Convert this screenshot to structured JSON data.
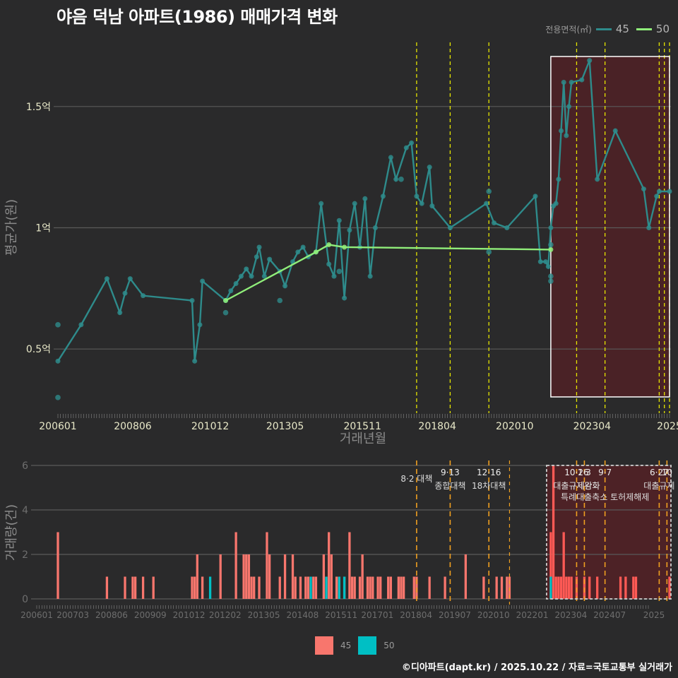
{
  "title": "야음 덕남 아파트(1986) 매매가격 변화",
  "legend_top": {
    "title": "전용면적(㎡)",
    "items": [
      {
        "label": "45",
        "color": "#2e8b8b"
      },
      {
        "label": "50",
        "color": "#90ee7a"
      }
    ]
  },
  "legend_bottom": {
    "items": [
      {
        "label": "45",
        "color": "#f8766d"
      },
      {
        "label": "50",
        "color": "#00bfc4"
      }
    ]
  },
  "footer": "©디아파트(dapt.kr) / 2025.10.22 / 자료=국토교통부 실거래가",
  "colors": {
    "bg": "#2a2a2b",
    "grid": "#5a5a5a",
    "line45": "#2e8b8b",
    "line50": "#90ee7a",
    "bar45": "#f8766d",
    "bar50": "#00bfc4",
    "policy": "#e6e600",
    "policy_bottom": "#f0a020",
    "highlight_fill": "#4a2226"
  },
  "chart_data": [
    {
      "type": "line",
      "title": "야음 덕남 아파트(1986) 매매가격 변화",
      "xlabel": "거래년월",
      "ylabel": "평균가(원)",
      "x_tick_labels": [
        "200601",
        "200806",
        "201012",
        "201305",
        "201511",
        "201804",
        "202010",
        "202304",
        "2025"
      ],
      "y_tick_labels": [
        "0.5억",
        "1억",
        "1.5억"
      ],
      "ylim": [
        0.25,
        1.75
      ],
      "y_unit": "억원",
      "grid": true,
      "legend_position": "top-right",
      "series": [
        {
          "name": "45",
          "points": [
            [
              "2006-01",
              0.45
            ],
            [
              "2006-10",
              0.6
            ],
            [
              "2007-08",
              0.79
            ],
            [
              "2008-01",
              0.65
            ],
            [
              "2008-03",
              0.73
            ],
            [
              "2008-05",
              0.79
            ],
            [
              "2008-10",
              0.72
            ],
            [
              "2010-05",
              0.7
            ],
            [
              "2010-06",
              0.45
            ],
            [
              "2010-08",
              0.6
            ],
            [
              "2010-09",
              0.78
            ],
            [
              "2011-06",
              0.7
            ],
            [
              "2011-08",
              0.74
            ],
            [
              "2011-10",
              0.77
            ],
            [
              "2011-12",
              0.8
            ],
            [
              "2012-02",
              0.83
            ],
            [
              "2012-04",
              0.8
            ],
            [
              "2012-06",
              0.88
            ],
            [
              "2012-07",
              0.92
            ],
            [
              "2012-09",
              0.8
            ],
            [
              "2012-11",
              0.87
            ],
            [
              "2013-03",
              0.82
            ],
            [
              "2013-05",
              0.76
            ],
            [
              "2013-08",
              0.86
            ],
            [
              "2013-10",
              0.9
            ],
            [
              "2013-12",
              0.92
            ],
            [
              "2014-02",
              0.88
            ],
            [
              "2014-05",
              0.9
            ],
            [
              "2014-07",
              1.1
            ],
            [
              "2014-10",
              0.85
            ],
            [
              "2014-12",
              0.8
            ],
            [
              "2015-02",
              1.03
            ],
            [
              "2015-04",
              0.71
            ],
            [
              "2015-06",
              0.99
            ],
            [
              "2015-08",
              1.1
            ],
            [
              "2015-10",
              0.92
            ],
            [
              "2015-12",
              1.12
            ],
            [
              "2016-02",
              0.8
            ],
            [
              "2016-04",
              1.0
            ],
            [
              "2016-07",
              1.13
            ],
            [
              "2016-10",
              1.29
            ],
            [
              "2016-12",
              1.2
            ],
            [
              "2017-04",
              1.33
            ],
            [
              "2017-06",
              1.35
            ],
            [
              "2017-08",
              1.13
            ],
            [
              "2017-10",
              1.1
            ],
            [
              "2018-01",
              1.25
            ],
            [
              "2018-02",
              1.09
            ],
            [
              "2018-09",
              1.0
            ],
            [
              "2019-11",
              1.1
            ],
            [
              "2020-02",
              1.02
            ],
            [
              "2020-07",
              1.0
            ],
            [
              "2021-06",
              1.13
            ],
            [
              "2021-08",
              0.86
            ],
            [
              "2021-10",
              0.86
            ],
            [
              "2021-11",
              0.84
            ],
            [
              "2021-12",
              1.0
            ],
            [
              "2022-01",
              1.09
            ],
            [
              "2022-02",
              1.1
            ],
            [
              "2022-03",
              1.2
            ],
            [
              "2022-04",
              1.4
            ],
            [
              "2022-05",
              1.6
            ],
            [
              "2022-06",
              1.38
            ],
            [
              "2022-07",
              1.5
            ],
            [
              "2022-08",
              1.6
            ],
            [
              "2022-12",
              1.61
            ],
            [
              "2023-03",
              1.69
            ],
            [
              "2023-06",
              1.2
            ],
            [
              "2024-01",
              1.4
            ],
            [
              "2024-12",
              1.16
            ],
            [
              "2025-02",
              1.0
            ],
            [
              "2025-05",
              1.13
            ],
            [
              "2025-06",
              1.15
            ],
            [
              "2025-10",
              1.15
            ]
          ]
        },
        {
          "name": "50",
          "points": [
            [
              "2011-06",
              0.7
            ],
            [
              "2014-05",
              0.9
            ],
            [
              "2014-10",
              0.93
            ],
            [
              "2015-04",
              0.92
            ],
            [
              "2021-12",
              0.91
            ]
          ]
        }
      ],
      "scatter_only_45": [
        [
          "2006-01",
          0.6
        ],
        [
          "2006-01",
          0.3
        ],
        [
          "2011-06",
          0.65
        ],
        [
          "2013-03",
          0.7
        ],
        [
          "2015-02",
          0.82
        ],
        [
          "2017-02",
          1.2
        ],
        [
          "2019-12",
          0.9
        ],
        [
          "2019-12",
          1.15
        ],
        [
          "2021-12",
          0.93
        ],
        [
          "2021-12",
          0.8
        ],
        [
          "2021-12",
          0.78
        ]
      ],
      "highlight_region": {
        "from": "2021-12",
        "to": "2025-10"
      },
      "policy_lines": [
        "2017-08",
        "2018-09",
        "2019-12",
        "2022-10",
        "2023-09",
        "2025-06",
        "2025-08",
        "2025-10"
      ]
    },
    {
      "type": "bar",
      "xlabel": "",
      "ylabel": "거래량(건)",
      "x_tick_labels": [
        "200601",
        "200703",
        "200806",
        "200909",
        "201012",
        "201202",
        "201305",
        "201408",
        "201511",
        "201701",
        "201804",
        "201907",
        "202010",
        "202201",
        "202304",
        "202407",
        "2025"
      ],
      "y_tick_labels": [
        "0",
        "2",
        "4",
        "6"
      ],
      "ylim": [
        0,
        6
      ],
      "series_names": [
        "45",
        "50"
      ],
      "bars_45": [
        [
          "2006-01",
          3
        ],
        [
          "2007-08",
          1
        ],
        [
          "2008-03",
          1
        ],
        [
          "2008-06",
          1
        ],
        [
          "2008-07",
          1
        ],
        [
          "2008-10",
          1
        ],
        [
          "2009-02",
          1
        ],
        [
          "2010-05",
          1
        ],
        [
          "2010-06",
          1
        ],
        [
          "2010-07",
          2
        ],
        [
          "2010-09",
          1
        ],
        [
          "2011-04",
          2
        ],
        [
          "2011-10",
          3
        ],
        [
          "2012-01",
          2
        ],
        [
          "2012-02",
          2
        ],
        [
          "2012-03",
          2
        ],
        [
          "2012-04",
          1
        ],
        [
          "2012-05",
          1
        ],
        [
          "2012-07",
          1
        ],
        [
          "2012-10",
          3
        ],
        [
          "2012-11",
          2
        ],
        [
          "2013-03",
          1
        ],
        [
          "2013-05",
          2
        ],
        [
          "2013-08",
          2
        ],
        [
          "2013-09",
          1
        ],
        [
          "2013-11",
          1
        ],
        [
          "2014-01",
          1
        ],
        [
          "2014-02",
          1
        ],
        [
          "2014-04",
          1
        ],
        [
          "2014-05",
          1
        ],
        [
          "2014-08",
          2
        ],
        [
          "2014-09",
          1
        ],
        [
          "2014-10",
          3
        ],
        [
          "2014-11",
          2
        ],
        [
          "2015-01",
          1
        ],
        [
          "2015-02",
          1
        ],
        [
          "2015-04",
          1
        ],
        [
          "2015-06",
          3
        ],
        [
          "2015-07",
          1
        ],
        [
          "2015-08",
          1
        ],
        [
          "2015-10",
          1
        ],
        [
          "2015-11",
          2
        ],
        [
          "2016-01",
          1
        ],
        [
          "2016-02",
          1
        ],
        [
          "2016-03",
          1
        ],
        [
          "2016-05",
          1
        ],
        [
          "2016-06",
          1
        ],
        [
          "2016-09",
          1
        ],
        [
          "2016-10",
          1
        ],
        [
          "2017-01",
          1
        ],
        [
          "2017-02",
          1
        ],
        [
          "2017-03",
          1
        ],
        [
          "2017-07",
          1
        ],
        [
          "2017-08",
          1
        ],
        [
          "2018-01",
          1
        ],
        [
          "2018-07",
          1
        ],
        [
          "2019-03",
          2
        ],
        [
          "2019-10",
          1
        ],
        [
          "2020-03",
          1
        ],
        [
          "2020-05",
          1
        ],
        [
          "2020-07",
          1
        ],
        [
          "2020-08",
          1
        ],
        [
          "2021-12",
          3
        ],
        [
          "2022-01",
          6
        ],
        [
          "2022-02",
          1
        ],
        [
          "2022-03",
          1
        ],
        [
          "2022-04",
          1
        ],
        [
          "2022-05",
          3
        ],
        [
          "2022-06",
          1
        ],
        [
          "2022-07",
          1
        ],
        [
          "2022-08",
          1
        ],
        [
          "2022-10",
          1
        ],
        [
          "2023-01",
          1
        ],
        [
          "2023-03",
          1
        ],
        [
          "2023-06",
          1
        ],
        [
          "2024-03",
          1
        ],
        [
          "2024-05",
          1
        ],
        [
          "2024-08",
          1
        ],
        [
          "2024-09",
          1
        ],
        [
          "2025-10",
          1
        ]
      ],
      "bars_50": [
        [
          "2010-12",
          1
        ],
        [
          "2014-03",
          1
        ],
        [
          "2014-09",
          1
        ],
        [
          "2015-02",
          1
        ],
        [
          "2015-04",
          1
        ],
        [
          "2021-12",
          1
        ]
      ],
      "annotations": [
        {
          "date": "2017-08",
          "line1": "",
          "line2": "8·2 대책"
        },
        {
          "date": "2018-09",
          "line1": "9·13",
          "line2": "종합대책"
        },
        {
          "date": "2019-12",
          "line1": "12·16",
          "line2": "18차대책"
        },
        {
          "date": "2022-10",
          "line1": "10·26",
          "line2": "대출규제강화"
        },
        {
          "date": "2023-01",
          "line1": "1·3",
          "line2": "규제완화"
        },
        {
          "date": "2023-09",
          "line1": "9·7",
          "line2": "특례대출축소 토허제해제"
        },
        {
          "date": "2025-06",
          "line1": "6·27",
          "line2": "대출규제"
        },
        {
          "date": "2025-09",
          "line1": "10",
          "line2": ""
        }
      ],
      "highlight_region": {
        "from": "2021-12",
        "to": "2025-10"
      }
    }
  ]
}
